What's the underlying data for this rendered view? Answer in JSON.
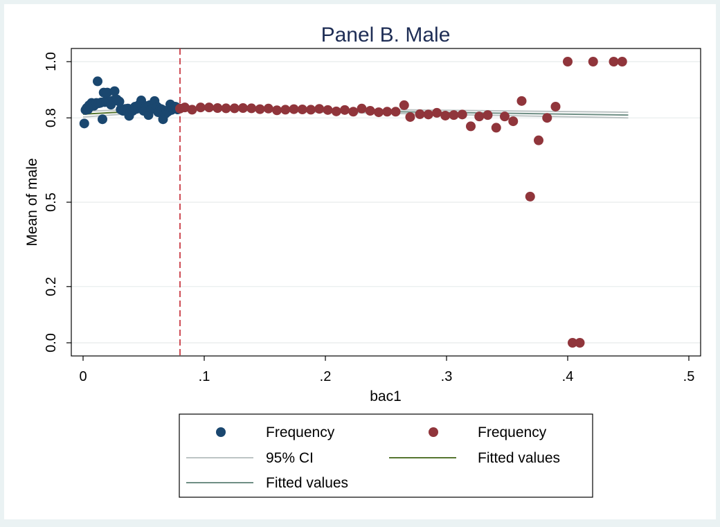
{
  "chart_data": {
    "type": "scatter",
    "title": "Panel B. Male",
    "xlabel": "bac1",
    "ylabel": "Mean of male",
    "xlim": [
      0,
      0.5
    ],
    "ylim": [
      0,
      1
    ],
    "x_ticks": [
      0,
      0.1,
      0.2,
      0.3,
      0.4,
      0.5
    ],
    "x_tick_labels": [
      "0",
      ".1",
      ".2",
      ".3",
      ".4",
      ".5"
    ],
    "y_ticks": [
      0,
      0.2,
      0.5,
      0.8,
      1.0
    ],
    "y_tick_labels": [
      "0.0",
      "0.2",
      "0.5",
      "0.8",
      "1.0"
    ],
    "cutoff_x": 0.08,
    "grid": true,
    "legend": {
      "position": "bottom",
      "entries": [
        {
          "label": "Frequency",
          "kind": "dot",
          "color": "#1a476f"
        },
        {
          "label": "Frequency",
          "kind": "dot",
          "color": "#90353b"
        },
        {
          "label": "95% CI",
          "kind": "line",
          "color": "#bcc4c4"
        },
        {
          "label": "Fitted values",
          "kind": "line",
          "color": "#55752f"
        },
        {
          "label": "Fitted values",
          "kind": "line",
          "color": "#6e8e84"
        }
      ]
    },
    "series": [
      {
        "label": "Frequency",
        "color": "#1a476f",
        "points": [
          [
            0.001,
            0.78
          ],
          [
            0.002,
            0.828
          ],
          [
            0.003,
            0.835
          ],
          [
            0.004,
            0.83
          ],
          [
            0.005,
            0.845
          ],
          [
            0.006,
            0.84
          ],
          [
            0.007,
            0.853
          ],
          [
            0.008,
            0.846
          ],
          [
            0.009,
            0.843
          ],
          [
            0.01,
            0.85
          ],
          [
            0.011,
            0.853
          ],
          [
            0.012,
            0.93
          ],
          [
            0.013,
            0.852
          ],
          [
            0.014,
            0.853
          ],
          [
            0.015,
            0.855
          ],
          [
            0.016,
            0.795
          ],
          [
            0.017,
            0.89
          ],
          [
            0.018,
            0.856
          ],
          [
            0.019,
            0.86
          ],
          [
            0.02,
            0.89
          ],
          [
            0.021,
            0.856
          ],
          [
            0.022,
            0.858
          ],
          [
            0.023,
            0.847
          ],
          [
            0.024,
            0.86
          ],
          [
            0.025,
            0.862
          ],
          [
            0.026,
            0.895
          ],
          [
            0.027,
            0.862
          ],
          [
            0.028,
            0.865
          ],
          [
            0.029,
            0.86
          ],
          [
            0.03,
            0.858
          ],
          [
            0.031,
            0.83
          ],
          [
            0.032,
            0.828
          ],
          [
            0.033,
            0.825
          ],
          [
            0.034,
            0.83
          ],
          [
            0.035,
            0.832
          ],
          [
            0.036,
            0.825
          ],
          [
            0.037,
            0.833
          ],
          [
            0.038,
            0.807
          ],
          [
            0.039,
            0.82
          ],
          [
            0.04,
            0.83
          ],
          [
            0.041,
            0.825
          ],
          [
            0.042,
            0.835
          ],
          [
            0.043,
            0.84
          ],
          [
            0.044,
            0.832
          ],
          [
            0.045,
            0.836
          ],
          [
            0.046,
            0.845
          ],
          [
            0.047,
            0.85
          ],
          [
            0.048,
            0.862
          ],
          [
            0.049,
            0.84
          ],
          [
            0.05,
            0.825
          ],
          [
            0.051,
            0.835
          ],
          [
            0.052,
            0.842
          ],
          [
            0.053,
            0.838
          ],
          [
            0.054,
            0.81
          ],
          [
            0.055,
            0.845
          ],
          [
            0.056,
            0.83
          ],
          [
            0.057,
            0.832
          ],
          [
            0.058,
            0.835
          ],
          [
            0.059,
            0.86
          ],
          [
            0.06,
            0.83
          ],
          [
            0.061,
            0.84
          ],
          [
            0.062,
            0.82
          ],
          [
            0.063,
            0.825
          ],
          [
            0.064,
            0.832
          ],
          [
            0.065,
            0.83
          ],
          [
            0.066,
            0.795
          ],
          [
            0.067,
            0.82
          ],
          [
            0.068,
            0.815
          ],
          [
            0.069,
            0.825
          ],
          [
            0.07,
            0.822
          ],
          [
            0.071,
            0.83
          ],
          [
            0.072,
            0.848
          ],
          [
            0.073,
            0.828
          ],
          [
            0.074,
            0.833
          ],
          [
            0.075,
            0.835
          ],
          [
            0.076,
            0.84
          ],
          [
            0.077,
            0.838
          ],
          [
            0.078,
            0.83
          ],
          [
            0.079,
            0.832
          ]
        ]
      },
      {
        "label": "Frequency",
        "color": "#90353b",
        "points": [
          [
            0.08,
            0.833
          ],
          [
            0.084,
            0.837
          ],
          [
            0.09,
            0.829
          ],
          [
            0.097,
            0.837
          ],
          [
            0.104,
            0.837
          ],
          [
            0.111,
            0.835
          ],
          [
            0.118,
            0.834
          ],
          [
            0.125,
            0.834
          ],
          [
            0.132,
            0.835
          ],
          [
            0.139,
            0.834
          ],
          [
            0.146,
            0.831
          ],
          [
            0.153,
            0.833
          ],
          [
            0.16,
            0.827
          ],
          [
            0.167,
            0.829
          ],
          [
            0.174,
            0.831
          ],
          [
            0.181,
            0.83
          ],
          [
            0.188,
            0.829
          ],
          [
            0.195,
            0.832
          ],
          [
            0.202,
            0.828
          ],
          [
            0.209,
            0.823
          ],
          [
            0.216,
            0.828
          ],
          [
            0.223,
            0.822
          ],
          [
            0.23,
            0.833
          ],
          [
            0.237,
            0.825
          ],
          [
            0.244,
            0.82
          ],
          [
            0.251,
            0.822
          ],
          [
            0.258,
            0.822
          ],
          [
            0.265,
            0.845
          ],
          [
            0.27,
            0.803
          ],
          [
            0.278,
            0.813
          ],
          [
            0.285,
            0.812
          ],
          [
            0.292,
            0.818
          ],
          [
            0.299,
            0.808
          ],
          [
            0.306,
            0.81
          ],
          [
            0.313,
            0.812
          ],
          [
            0.32,
            0.77
          ],
          [
            0.327,
            0.805
          ],
          [
            0.334,
            0.81
          ],
          [
            0.341,
            0.765
          ],
          [
            0.348,
            0.805
          ],
          [
            0.355,
            0.788
          ],
          [
            0.362,
            0.86
          ],
          [
            0.369,
            0.52
          ],
          [
            0.376,
            0.72
          ],
          [
            0.383,
            0.8
          ],
          [
            0.39,
            0.84
          ],
          [
            0.4,
            1.0
          ],
          [
            0.404,
            0.0
          ],
          [
            0.41,
            0.0
          ],
          [
            0.421,
            1.0
          ],
          [
            0.438,
            1.0
          ],
          [
            0.445,
            1.0
          ]
        ]
      }
    ],
    "fitted": [
      {
        "label": "Fitted values",
        "color": "#55752f",
        "x": [
          0.0,
          0.08
        ],
        "y": [
          0.813,
          0.832
        ]
      },
      {
        "label": "Fitted values",
        "color": "#6e8e84",
        "x": [
          0.08,
          0.45
        ],
        "y": [
          0.833,
          0.81
        ]
      }
    ],
    "ci": [
      {
        "label": "95% CI",
        "color": "#bcc4c4",
        "x": [
          0.0,
          0.08
        ],
        "lower": [
          0.803,
          0.828
        ],
        "upper": [
          0.823,
          0.836
        ]
      },
      {
        "label": "95% CI",
        "color": "#bcc4c4",
        "x": [
          0.08,
          0.45
        ],
        "lower": [
          0.83,
          0.8
        ],
        "upper": [
          0.837,
          0.82
        ]
      }
    ]
  }
}
